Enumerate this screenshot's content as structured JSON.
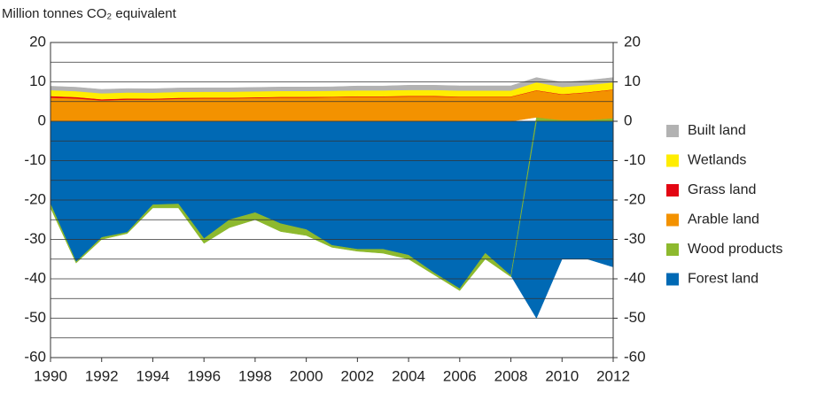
{
  "chart_data": {
    "type": "stacked_area",
    "title": "Million tonnes CO₂ equivalent",
    "x": [
      1990,
      1991,
      1992,
      1993,
      1994,
      1995,
      1996,
      1997,
      1998,
      1999,
      2000,
      2001,
      2002,
      2003,
      2004,
      2005,
      2006,
      2007,
      2008,
      2009,
      2010,
      2011,
      2012
    ],
    "series": [
      {
        "name": "Forest land",
        "color": "#0069b4",
        "values": [
          -21,
          -35.7,
          -29.5,
          -28.2,
          -21.2,
          -21,
          -29.8,
          -25,
          -23.2,
          -26,
          -27.5,
          -31.5,
          -32.5,
          -32.5,
          -34,
          -38.5,
          -42.5,
          -33.5,
          -39.2,
          -50,
          -35,
          -35,
          -37
        ]
      },
      {
        "name": "Wood products",
        "color": "#8db92e",
        "values": [
          -1,
          -0.3,
          -0.5,
          -0.3,
          -0.8,
          -1,
          -1.2,
          -2,
          -1.8,
          -2,
          -1.5,
          -0.5,
          -0.5,
          -1,
          -1,
          -0.5,
          -0.5,
          -1.5,
          -0.3,
          1,
          0.3,
          0.3,
          0.8
        ]
      },
      {
        "name": "Arable land",
        "color": "#f39200",
        "values": [
          6,
          5.8,
          5.3,
          5.5,
          5.5,
          5.7,
          5.8,
          5.8,
          5.9,
          6,
          6,
          6.1,
          6.2,
          6.2,
          6.3,
          6.3,
          6.2,
          6.2,
          6.2,
          6.8,
          6.5,
          7,
          7.2
        ]
      },
      {
        "name": "Grass land",
        "color": "#e30613",
        "values": [
          0.4,
          0.35,
          0.3,
          0.3,
          0.25,
          0.25,
          0.2,
          0.2,
          0.2,
          0.2,
          0.2,
          0.15,
          0.15,
          0.15,
          0.15,
          0.15,
          0.1,
          0.1,
          0.1,
          0.1,
          0.1,
          0.1,
          0.1
        ]
      },
      {
        "name": "Wetlands",
        "color": "#ffed00",
        "values": [
          1.5,
          1.5,
          1.5,
          1.5,
          1.5,
          1.5,
          1.5,
          1.5,
          1.5,
          1.5,
          1.5,
          1.5,
          1.5,
          1.5,
          1.5,
          1.5,
          1.5,
          1.5,
          1.5,
          2,
          1.8,
          1.8,
          1.8
        ]
      },
      {
        "name": "Built land",
        "color": "#b2b2b2",
        "values": [
          1,
          1,
          1,
          1,
          1,
          1,
          1,
          1,
          1,
          1,
          1,
          1,
          1.1,
          1.1,
          1.2,
          1.2,
          1.2,
          1.2,
          1.2,
          1.2,
          1.2,
          1.2,
          1.2
        ]
      }
    ],
    "xlim": [
      1990,
      2012
    ],
    "xticks": [
      1990,
      1992,
      1994,
      1996,
      1998,
      2000,
      2002,
      2004,
      2006,
      2008,
      2010,
      2012
    ],
    "ylim": [
      -60,
      20
    ],
    "yticks": [
      -60,
      -50,
      -40,
      -30,
      -20,
      -10,
      0,
      10,
      20
    ],
    "yminor": [
      -55,
      -45,
      -35,
      -25,
      -15,
      -5,
      5,
      15
    ],
    "y2lim": [
      -60,
      20
    ],
    "y2ticks": [
      -60,
      -50,
      -40,
      -30,
      -20,
      -10,
      0,
      10,
      20
    ],
    "grid": true
  }
}
